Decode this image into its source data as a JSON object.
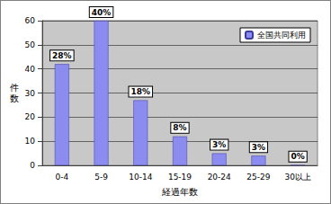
{
  "chart_data": {
    "type": "bar",
    "x_label": "経過年数",
    "y_label": "件数",
    "categories": [
      "0-4",
      "5-9",
      "10-14",
      "15-19",
      "20-24",
      "25-29",
      "30以上"
    ],
    "series": [
      {
        "name": "全国共同利用",
        "color": "#8c8cf0",
        "values": [
          42,
          60,
          27,
          12,
          5,
          4,
          0
        ]
      }
    ],
    "percent_labels": [
      "28%",
      "40%",
      "18%",
      "8%",
      "3%",
      "3%",
      "0%"
    ],
    "ylim": [
      0,
      60
    ],
    "yticks": [
      0,
      10,
      20,
      30,
      40,
      50,
      60
    ],
    "grid": true,
    "legend": "upper right",
    "data_labels": true
  }
}
